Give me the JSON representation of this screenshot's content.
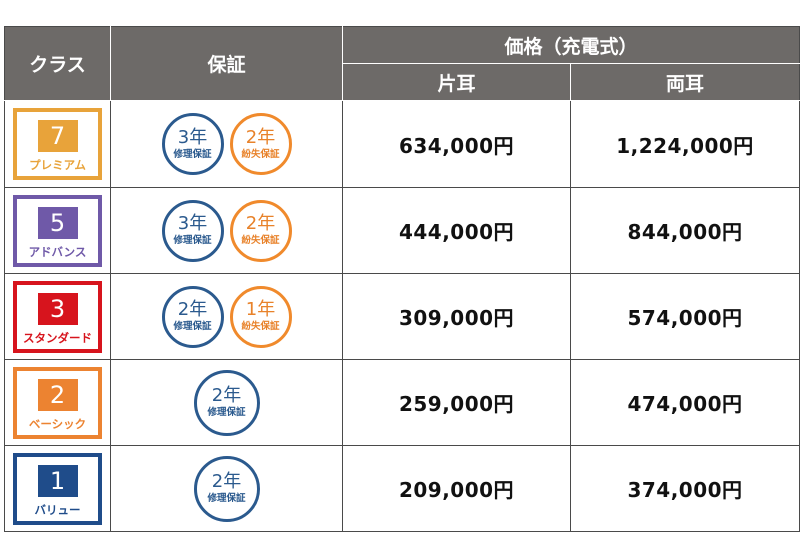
{
  "header": {
    "class_label": "クラス",
    "warranty_label": "保証",
    "price_label": "価格（充電式）",
    "one_ear_label": "片耳",
    "both_ears_label": "両耳"
  },
  "colors": {
    "premium": "#e8a33a",
    "advance": "#6f59a8",
    "standard": "#d7141d",
    "basic": "#ec8331",
    "value": "#1f4c8a",
    "repair_seal": "#2b5a8e",
    "loss_seal": "#f08a2c"
  },
  "rows": [
    {
      "class_number": "7",
      "class_name": "プレミアム",
      "color": "#e8a33a",
      "repair": {
        "years": "3年",
        "kind": "修理保証"
      },
      "loss": {
        "years": "2年",
        "kind": "紛失保証"
      },
      "price_one": "634,000円",
      "price_both": "1,224,000円"
    },
    {
      "class_number": "5",
      "class_name": "アドバンス",
      "color": "#6f59a8",
      "repair": {
        "years": "3年",
        "kind": "修理保証"
      },
      "loss": {
        "years": "2年",
        "kind": "紛失保証"
      },
      "price_one": "444,000円",
      "price_both": "844,000円"
    },
    {
      "class_number": "3",
      "class_name": "スタンダード",
      "color": "#d7141d",
      "repair": {
        "years": "2年",
        "kind": "修理保証"
      },
      "loss": {
        "years": "1年",
        "kind": "紛失保証"
      },
      "price_one": "309,000円",
      "price_both": "574,000円"
    },
    {
      "class_number": "2",
      "class_name": "ベーシック",
      "color": "#ec8331",
      "repair": {
        "years": "2年",
        "kind": "修理保証"
      },
      "price_one": "259,000円",
      "price_both": "474,000円"
    },
    {
      "class_number": "1",
      "class_name": "バリュー",
      "color": "#1f4c8a",
      "repair": {
        "years": "2年",
        "kind": "修理保証"
      },
      "price_one": "209,000円",
      "price_both": "374,000円"
    }
  ]
}
